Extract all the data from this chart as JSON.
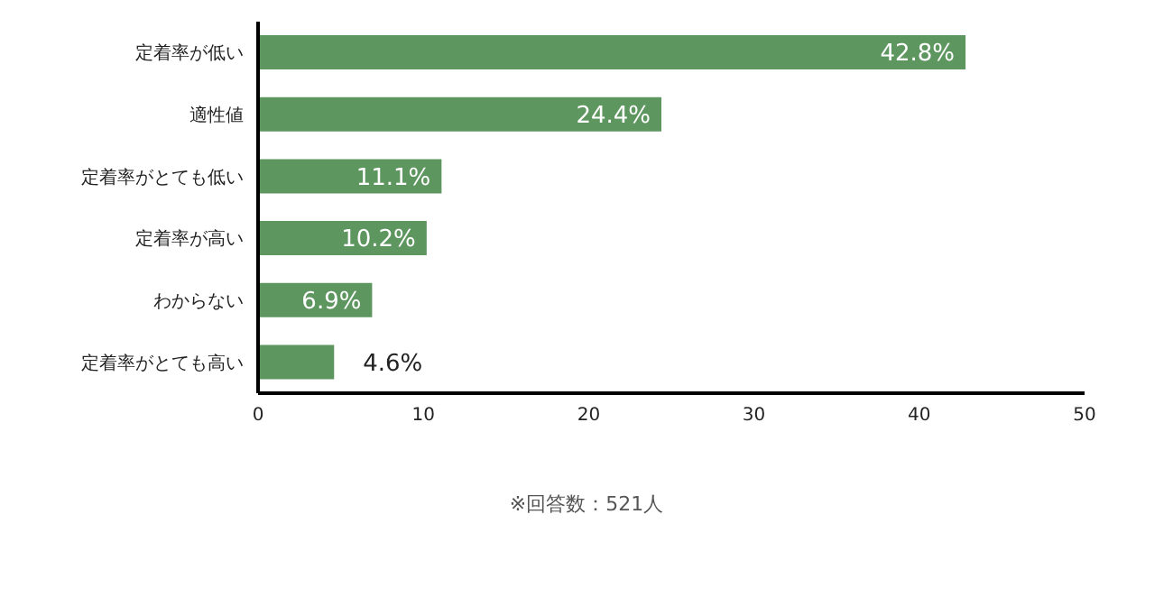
{
  "chart_data": {
    "type": "bar",
    "orientation": "horizontal",
    "categories": [
      "定着率が低い",
      "適性値",
      "定着率がとても低い",
      "定着率が高い",
      "わからない",
      "定着率がとても高い"
    ],
    "values": [
      42.8,
      24.4,
      11.1,
      10.2,
      6.9,
      4.6
    ],
    "value_labels": [
      "42.8%",
      "24.4%",
      "11.1%",
      "10.2%",
      "6.9%",
      "4.6%"
    ],
    "color": "#5e9660",
    "xlim": [
      0,
      50
    ],
    "xticks": [
      0,
      10,
      20,
      30,
      40,
      50
    ],
    "grid": false,
    "annotations": [
      "※回答数：521人"
    ]
  }
}
